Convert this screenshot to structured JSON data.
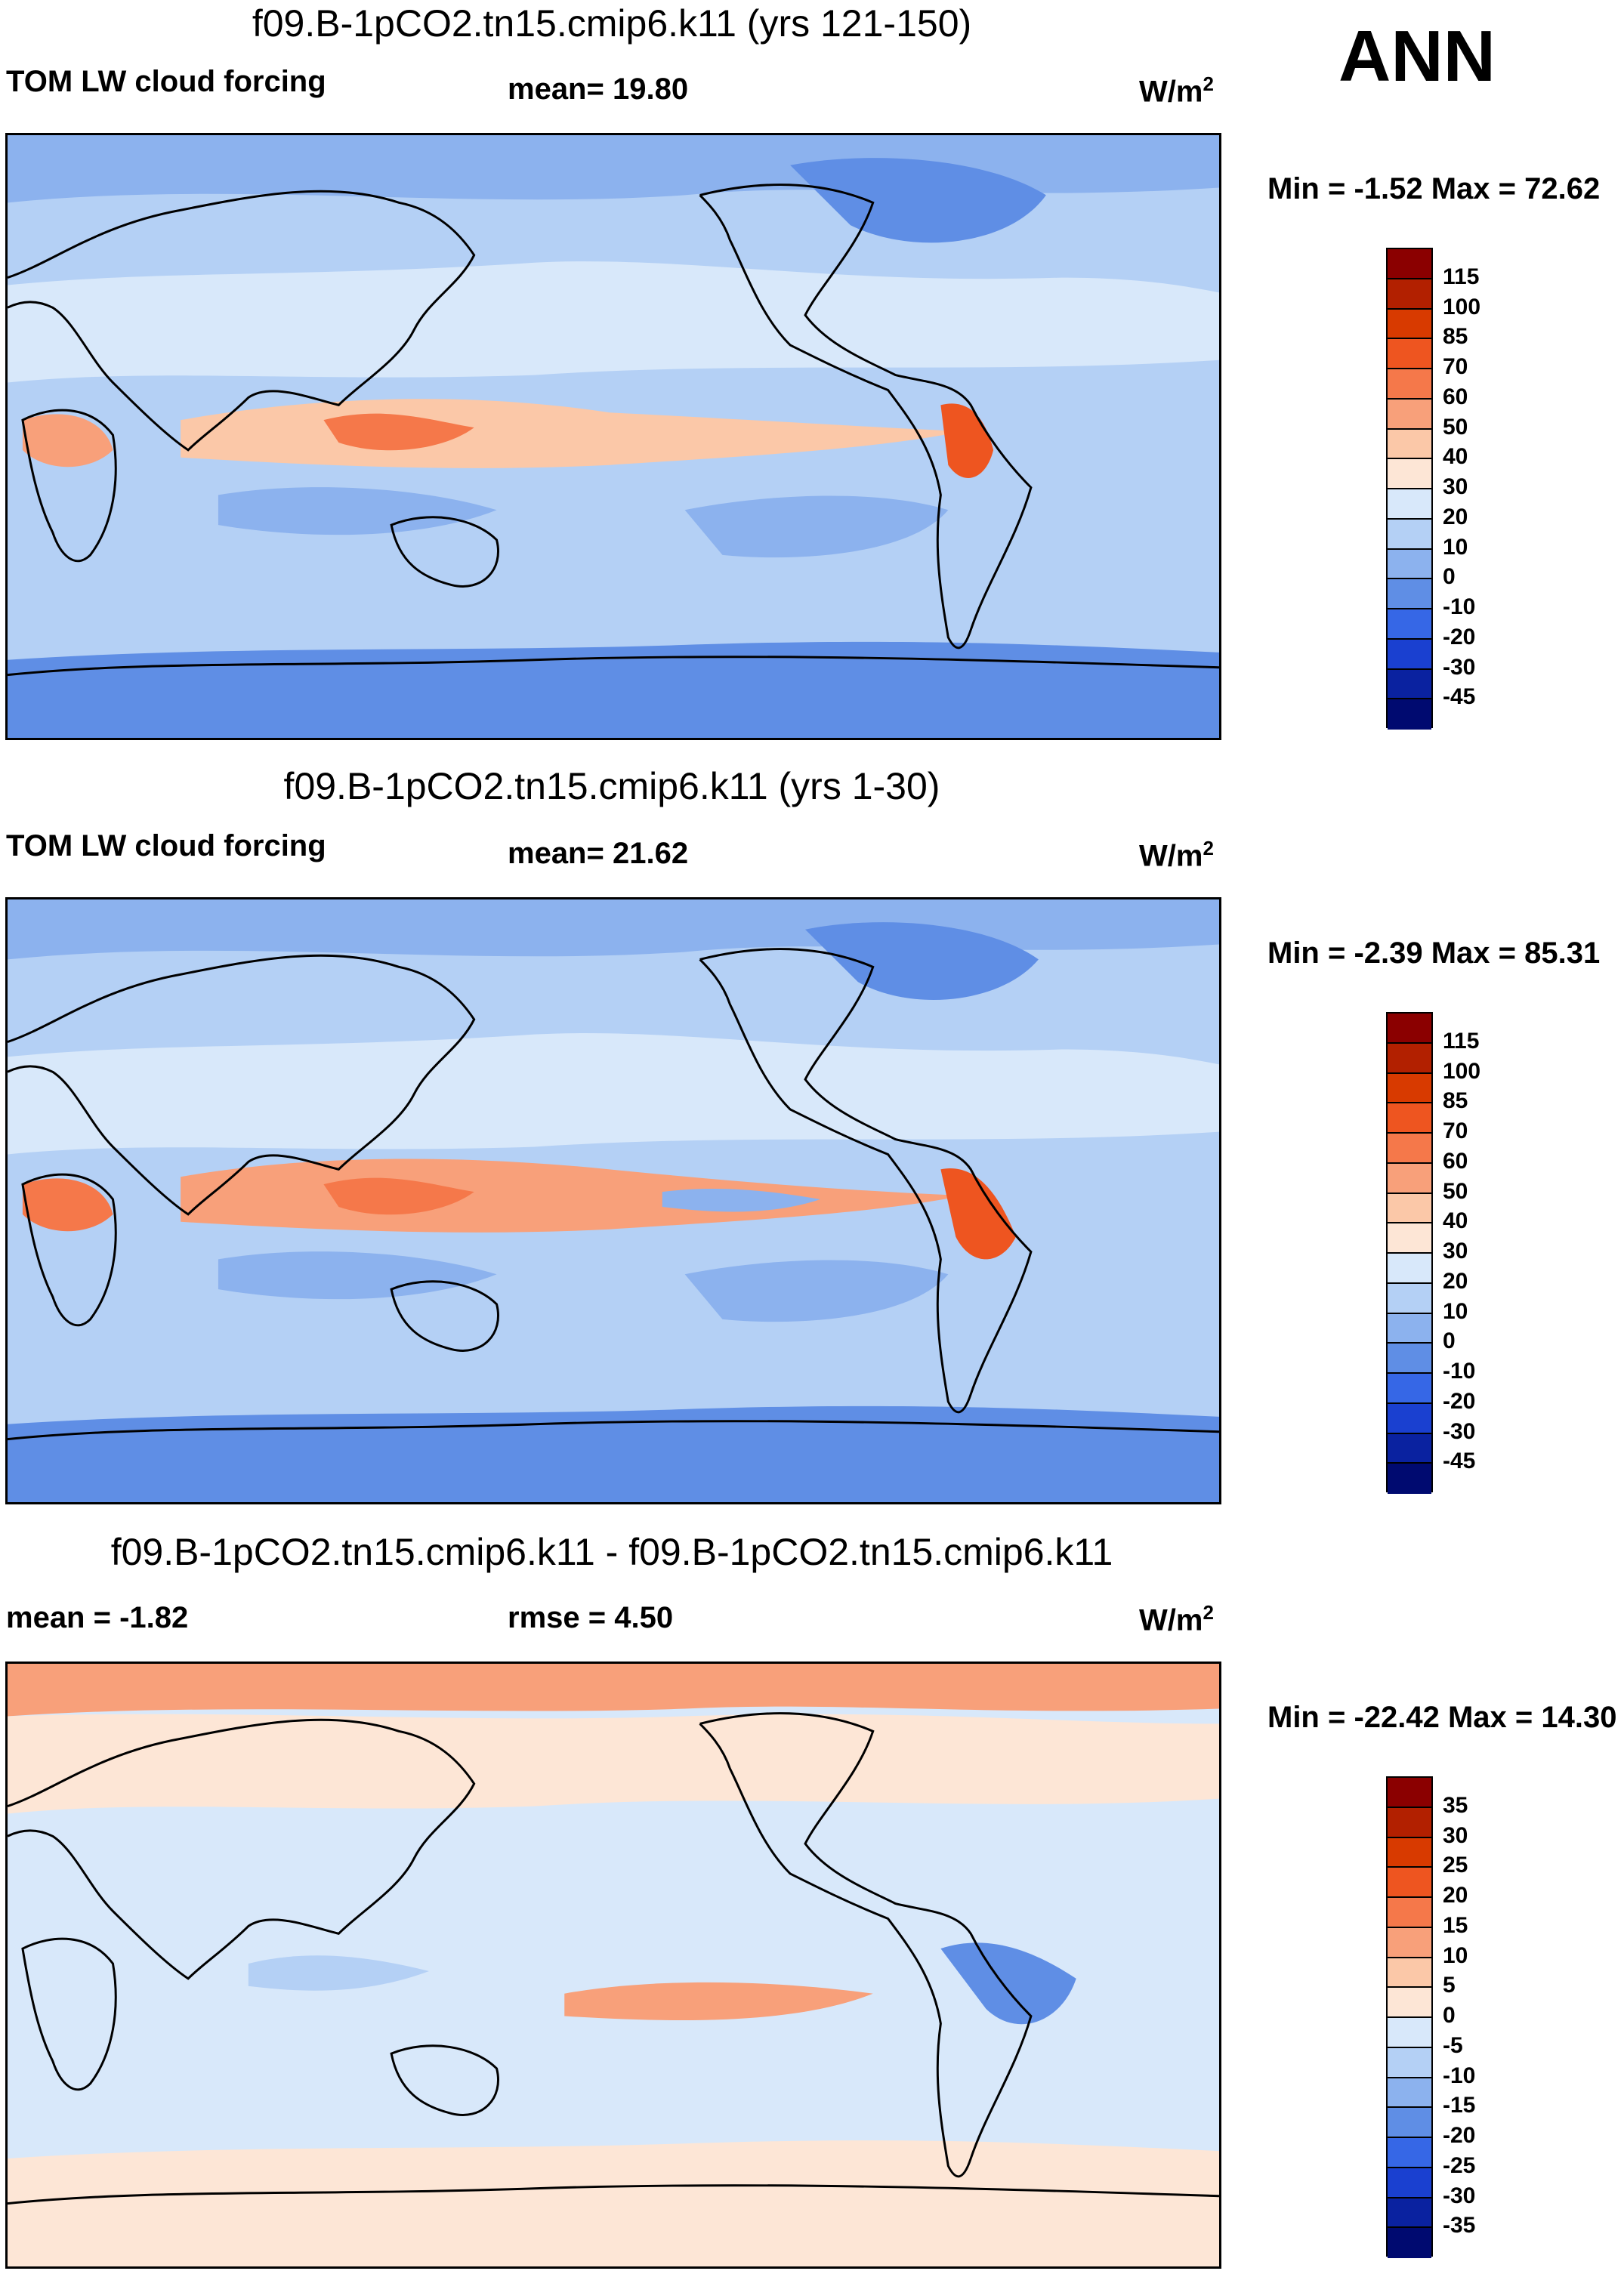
{
  "season": "ANN",
  "panels": [
    {
      "title": "f09.B-1pCO2.tn15.cmip6.k11 (yrs 121-150)",
      "left_label": "TOM LW cloud forcing",
      "center_label": "mean=  19.80",
      "units": "W/m",
      "units_exp": "2",
      "minmax": "Min =  -1.52 Max =  72.62",
      "colorbar": {
        "labels": [
          "115",
          "100",
          "85",
          "70",
          "60",
          "50",
          "40",
          "30",
          "20",
          "10",
          "0",
          "-10",
          "-20",
          "-30",
          "-45"
        ],
        "colors": [
          "#8b0000",
          "#b22000",
          "#d83a00",
          "#ee5520",
          "#f5784a",
          "#f8a07a",
          "#fbc8a8",
          "#fde6d6",
          "#d8e8fa",
          "#b4d0f5",
          "#8cb2ee",
          "#5f8ee5",
          "#3667e6",
          "#1a40d0",
          "#0a22a0",
          "#000a70"
        ]
      }
    },
    {
      "title": "f09.B-1pCO2.tn15.cmip6.k11 (yrs 1-30)",
      "left_label": "TOM LW cloud forcing",
      "center_label": "mean=  21.62",
      "units": "W/m",
      "units_exp": "2",
      "minmax": "Min =  -2.39 Max =  85.31",
      "colorbar": {
        "labels": [
          "115",
          "100",
          "85",
          "70",
          "60",
          "50",
          "40",
          "30",
          "20",
          "10",
          "0",
          "-10",
          "-20",
          "-30",
          "-45"
        ],
        "colors": [
          "#8b0000",
          "#b22000",
          "#d83a00",
          "#ee5520",
          "#f5784a",
          "#f8a07a",
          "#fbc8a8",
          "#fde6d6",
          "#d8e8fa",
          "#b4d0f5",
          "#8cb2ee",
          "#5f8ee5",
          "#3667e6",
          "#1a40d0",
          "#0a22a0",
          "#000a70"
        ]
      }
    },
    {
      "title": "f09.B-1pCO2.tn15.cmip6.k11 - f09.B-1pCO2.tn15.cmip6.k11",
      "left_label": "mean =  -1.82",
      "center_label": "rmse =   4.50",
      "units": "W/m",
      "units_exp": "2",
      "minmax": "Min = -22.42 Max =  14.30",
      "colorbar": {
        "labels": [
          "35",
          "30",
          "25",
          "20",
          "15",
          "10",
          "5",
          "0",
          "-5",
          "-10",
          "-15",
          "-20",
          "-25",
          "-30",
          "-35"
        ],
        "colors": [
          "#8b0000",
          "#b22000",
          "#d83a00",
          "#ee5520",
          "#f5784a",
          "#f8a07a",
          "#fbc8a8",
          "#fde6d6",
          "#d8e8fa",
          "#b4d0f5",
          "#8cb2ee",
          "#5f8ee5",
          "#3667e6",
          "#1a40d0",
          "#0a22a0",
          "#000a70"
        ]
      }
    }
  ]
}
